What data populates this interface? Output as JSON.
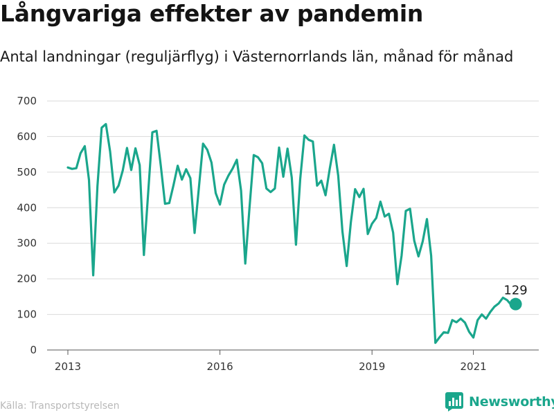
{
  "title": "Långvariga effekter av pandemin",
  "subtitle": "Antal landningar (reguljärflyg) i Västernorrlands län, månad för månad",
  "source": "Källa: Transportstyrelsen",
  "brand": {
    "name": "Newsworthy",
    "icon": "bar-chart-logo-icon"
  },
  "colors": {
    "line": "#1aa68c",
    "grid": "#d9d9d9",
    "text": "#1a1a1a",
    "source": "#b8b8b8"
  },
  "chart_data": {
    "type": "line",
    "title": "Långvariga effekter av pandemin",
    "subtitle": "Antal landningar (reguljärflyg) i Västernorrlands län, månad för månad",
    "xlabel": "",
    "ylabel": "",
    "ylim": [
      0,
      700
    ],
    "yticks": [
      0,
      100,
      200,
      300,
      400,
      500,
      600,
      700
    ],
    "xticks": [
      {
        "label": "2013",
        "month_index": 0
      },
      {
        "label": "2016",
        "month_index": 36
      },
      {
        "label": "2019",
        "month_index": 72
      },
      {
        "label": "2021",
        "month_index": 96
      }
    ],
    "x_start": "2013-01",
    "x_end": "2022-01",
    "grid": true,
    "legend": "none",
    "end_label": "129",
    "series": [
      {
        "values": [
          513,
          509,
          511,
          553,
          573,
          478,
          210,
          460,
          625,
          635,
          558,
          443,
          462,
          505,
          568,
          506,
          567,
          520,
          267,
          440,
          612,
          616,
          518,
          411,
          413,
          463,
          518,
          479,
          508,
          483,
          329,
          454,
          580,
          563,
          527,
          441,
          409,
          465,
          490,
          510,
          535,
          448,
          243,
          400,
          548,
          542,
          525,
          454,
          444,
          454,
          569,
          487,
          566,
          485,
          296,
          480,
          603,
          591,
          586,
          462,
          476,
          435,
          510,
          577,
          490,
          333,
          236,
          360,
          452,
          430,
          453,
          326,
          355,
          371,
          417,
          375,
          383,
          330,
          185,
          265,
          391,
          397,
          307,
          263,
          305,
          368,
          265,
          20,
          36,
          50,
          48,
          84,
          78,
          88,
          77,
          51,
          35,
          84,
          100,
          88,
          107,
          122,
          131,
          147,
          140,
          126,
          129
        ]
      }
    ]
  }
}
